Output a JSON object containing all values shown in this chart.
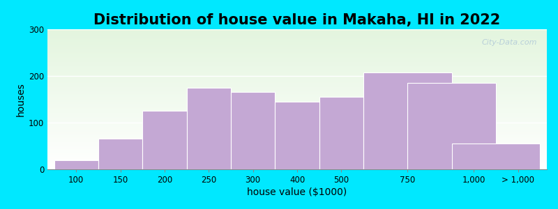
{
  "title": "Distribution of house value in Makaha, HI in 2022",
  "xlabel": "house value ($1000)",
  "ylabel": "houses",
  "bar_heights": [
    20,
    65,
    125,
    175,
    165,
    145,
    155,
    208,
    185,
    55
  ],
  "bar_lefts": [
    0,
    1,
    2,
    3,
    4,
    5,
    6,
    7,
    8,
    9
  ],
  "bar_widths": [
    1,
    1,
    1,
    1,
    1,
    1,
    1,
    2,
    2,
    2
  ],
  "bar_color": "#c4a8d4",
  "bar_edgecolor": "#ffffff",
  "ylim": [
    0,
    300
  ],
  "yticks": [
    0,
    100,
    200,
    300
  ],
  "xlim": [
    -0.15,
    11.15
  ],
  "background_outer": "#00e8ff",
  "title_fontsize": 15,
  "axis_label_fontsize": 10,
  "tick_fontsize": 8.5,
  "watermark_text": "City-Data.com",
  "xtick_positions": [
    0.5,
    1.5,
    2.5,
    3.5,
    4.5,
    5.5,
    6.5,
    8.0,
    9.5,
    10.5
  ],
  "xtick_labels": [
    "100",
    "150",
    "200",
    "250",
    "300",
    "400",
    "500",
    "750",
    "1,000",
    "> 1,000"
  ]
}
